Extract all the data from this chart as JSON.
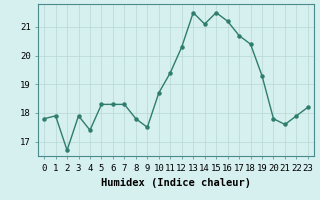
{
  "x": [
    0,
    1,
    2,
    3,
    4,
    5,
    6,
    7,
    8,
    9,
    10,
    11,
    12,
    13,
    14,
    15,
    16,
    17,
    18,
    19,
    20,
    21,
    22,
    23
  ],
  "y": [
    17.8,
    17.9,
    16.7,
    17.9,
    17.4,
    18.3,
    18.3,
    18.3,
    17.8,
    17.5,
    18.7,
    19.4,
    20.3,
    21.5,
    21.1,
    21.5,
    21.2,
    20.7,
    20.4,
    19.3,
    17.8,
    17.6,
    17.9,
    18.2
  ],
  "line_color": "#2e7d6e",
  "marker": "o",
  "marker_size": 2.2,
  "bg_color": "#d6efef",
  "grid_color": "#b8d8d8",
  "xlabel": "Humidex (Indice chaleur)",
  "xlim": [
    -0.5,
    23.5
  ],
  "ylim": [
    16.5,
    21.8
  ],
  "yticks": [
    17,
    18,
    19,
    20,
    21
  ],
  "xtick_labels": [
    "0",
    "1",
    "2",
    "3",
    "4",
    "5",
    "6",
    "7",
    "8",
    "9",
    "10",
    "11",
    "12",
    "13",
    "14",
    "15",
    "16",
    "17",
    "18",
    "19",
    "20",
    "21",
    "22",
    "23"
  ],
  "xlabel_fontsize": 7.5,
  "tick_fontsize": 6.5,
  "linewidth": 1.0
}
